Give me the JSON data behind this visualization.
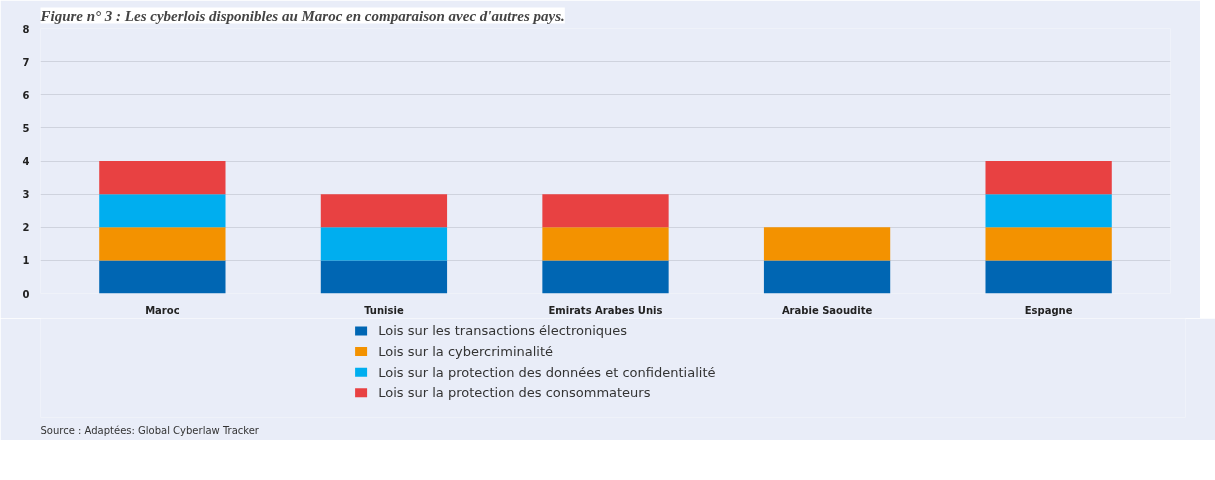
{
  "chart_data": {
    "type": "bar",
    "title": "Figure n° 3 : Les cyberlois disponibles au Maroc en comparaison avec d'autres pays.",
    "categories": [
      "Maroc",
      "Tunisie",
      "Emirats Arabes Unis",
      "Arabie Saoudite",
      "Espagne"
    ],
    "series": [
      {
        "name": "Lois sur les transactions électroniques",
        "color": "#0066b3",
        "values": [
          1,
          1,
          1,
          1,
          1
        ]
      },
      {
        "name": "Lois sur la cybercriminalité",
        "color": "#f39200",
        "values": [
          1,
          0,
          1,
          1,
          1
        ]
      },
      {
        "name": "Lois sur la protection des données et confidentialité",
        "color": "#00aeef",
        "values": [
          1,
          1,
          0,
          0,
          1
        ]
      },
      {
        "name": "Lois sur la protection des consommateurs",
        "color": "#e84142",
        "values": [
          1,
          1,
          1,
          0,
          1
        ]
      }
    ],
    "stacked": true,
    "ylim": [
      0,
      8
    ],
    "yticks": [
      0,
      1,
      2,
      3,
      4,
      5,
      6,
      7,
      8
    ],
    "grid": "y",
    "legend": "bottom",
    "annotations": [
      "Source : Adaptées: Global Cyberlaw Tracker"
    ]
  }
}
